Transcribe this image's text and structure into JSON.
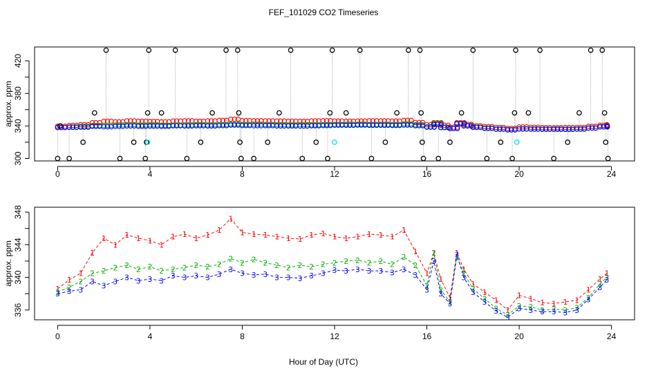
{
  "chart_data": [
    {
      "type": "scatter",
      "title": "FEF_101029  CO2 Timeseries",
      "xlabel": "",
      "ylabel": "approx. ppm",
      "xlim": [
        -1,
        25
      ],
      "ylim": [
        297,
        437
      ],
      "xticks": [
        0,
        4,
        8,
        12,
        16,
        20,
        24
      ],
      "yticks": [
        300,
        320,
        340,
        360,
        380,
        400,
        420
      ],
      "ytick_labels_shown": [
        "300",
        "340",
        "380",
        "420"
      ],
      "grid": false,
      "reference_points": {
        "color": "#000000",
        "points": [
          [
            0.0,
            300
          ],
          [
            0.1,
            340
          ],
          [
            0.5,
            300
          ],
          [
            1.1,
            320
          ],
          [
            1.6,
            356
          ],
          [
            2.1,
            433
          ],
          [
            2.7,
            300
          ],
          [
            3.3,
            320
          ],
          [
            3.8,
            300
          ],
          [
            3.85,
            320
          ],
          [
            3.9,
            356
          ],
          [
            3.95,
            433
          ],
          [
            4.5,
            356
          ],
          [
            5.1,
            433
          ],
          [
            5.6,
            300
          ],
          [
            6.2,
            320
          ],
          [
            6.7,
            356
          ],
          [
            7.3,
            433
          ],
          [
            7.8,
            433
          ],
          [
            7.85,
            356
          ],
          [
            7.9,
            320
          ],
          [
            7.95,
            300
          ],
          [
            8.5,
            300
          ],
          [
            9.1,
            320
          ],
          [
            9.6,
            356
          ],
          [
            10.1,
            433
          ],
          [
            10.6,
            300
          ],
          [
            11.2,
            320
          ],
          [
            11.7,
            300
          ],
          [
            11.8,
            356
          ],
          [
            11.9,
            433
          ],
          [
            12.5,
            356
          ],
          [
            13.1,
            433
          ],
          [
            13.6,
            300
          ],
          [
            14.2,
            320
          ],
          [
            14.7,
            356
          ],
          [
            15.2,
            433
          ],
          [
            15.7,
            433
          ],
          [
            15.75,
            356
          ],
          [
            15.8,
            320
          ],
          [
            15.85,
            300
          ],
          [
            16.5,
            300
          ],
          [
            17.0,
            320
          ],
          [
            17.5,
            356
          ],
          [
            18.0,
            433
          ],
          [
            18.6,
            300
          ],
          [
            19.2,
            320
          ],
          [
            19.7,
            300
          ],
          [
            19.8,
            356
          ],
          [
            19.85,
            433
          ],
          [
            20.4,
            356
          ],
          [
            20.9,
            433
          ],
          [
            21.5,
            300
          ],
          [
            22.1,
            320
          ],
          [
            22.6,
            356
          ],
          [
            23.1,
            433
          ],
          [
            23.6,
            433
          ],
          [
            23.7,
            356
          ],
          [
            23.75,
            320
          ],
          [
            23.85,
            300
          ]
        ]
      },
      "highlight_points": {
        "color": "#00e5ee",
        "points": [
          [
            3.9,
            320
          ],
          [
            12.0,
            320
          ],
          [
            19.9,
            320
          ]
        ]
      },
      "series": [
        {
          "label": "1",
          "color": "#ff0000"
        },
        {
          "label": "2",
          "color": "#00b000"
        },
        {
          "label": "3",
          "color": "#0000ff"
        }
      ]
    },
    {
      "type": "scatter",
      "title": "",
      "xlabel": "Hour of Day (UTC)",
      "ylabel": "approx. ppm",
      "xlim": [
        -1,
        25
      ],
      "ylim": [
        334.8,
        348.6
      ],
      "xticks": [
        0,
        4,
        8,
        12,
        16,
        20,
        24
      ],
      "yticks": [
        336,
        338,
        340,
        342,
        344,
        346,
        348
      ],
      "ytick_labels_shown": [
        "336",
        "340",
        "344",
        "348"
      ],
      "grid": false,
      "series": [
        {
          "label": "1",
          "color": "#ff0000",
          "points": [
            [
              0.0,
              338.6
            ],
            [
              0.5,
              339.7
            ],
            [
              1.0,
              340.5
            ],
            [
              1.5,
              343.0
            ],
            [
              2.0,
              344.8
            ],
            [
              2.5,
              344.0
            ],
            [
              3.0,
              345.2
            ],
            [
              3.5,
              344.8
            ],
            [
              4.0,
              344.5
            ],
            [
              4.5,
              344.0
            ],
            [
              5.0,
              345.0
            ],
            [
              5.5,
              345.3
            ],
            [
              6.0,
              344.8
            ],
            [
              6.5,
              345.2
            ],
            [
              7.0,
              345.8
            ],
            [
              7.5,
              347.2
            ],
            [
              8.0,
              345.5
            ],
            [
              8.5,
              345.3
            ],
            [
              9.0,
              345.2
            ],
            [
              9.5,
              345.0
            ],
            [
              10.0,
              344.8
            ],
            [
              10.5,
              344.7
            ],
            [
              11.0,
              345.2
            ],
            [
              11.5,
              345.4
            ],
            [
              12.0,
              345.0
            ],
            [
              12.5,
              344.8
            ],
            [
              13.0,
              345.0
            ],
            [
              13.5,
              345.3
            ],
            [
              14.0,
              345.2
            ],
            [
              14.5,
              345.0
            ],
            [
              15.0,
              345.8
            ],
            [
              15.5,
              343.2
            ],
            [
              16.0,
              340.5
            ],
            [
              16.3,
              343.0
            ],
            [
              16.6,
              339.8
            ],
            [
              17.0,
              337.5
            ],
            [
              17.3,
              343.0
            ],
            [
              17.6,
              341.0
            ],
            [
              18.0,
              339.2
            ],
            [
              18.5,
              338.2
            ],
            [
              19.0,
              337.2
            ],
            [
              19.5,
              336.0
            ],
            [
              20.0,
              337.8
            ],
            [
              20.5,
              337.4
            ],
            [
              21.0,
              336.9
            ],
            [
              21.5,
              336.8
            ],
            [
              22.0,
              337.0
            ],
            [
              22.5,
              337.2
            ],
            [
              23.0,
              338.5
            ],
            [
              23.5,
              339.8
            ],
            [
              23.8,
              340.5
            ]
          ]
        },
        {
          "label": "2",
          "color": "#00b000",
          "points": [
            [
              0.0,
              338.2
            ],
            [
              0.5,
              338.8
            ],
            [
              1.0,
              339.5
            ],
            [
              1.5,
              340.5
            ],
            [
              2.0,
              340.8
            ],
            [
              2.5,
              341.2
            ],
            [
              3.0,
              341.5
            ],
            [
              3.5,
              341.0
            ],
            [
              4.0,
              341.3
            ],
            [
              4.5,
              340.8
            ],
            [
              5.0,
              341.0
            ],
            [
              5.5,
              341.2
            ],
            [
              6.0,
              341.5
            ],
            [
              6.5,
              341.3
            ],
            [
              7.0,
              341.6
            ],
            [
              7.5,
              342.3
            ],
            [
              8.0,
              341.8
            ],
            [
              8.5,
              342.2
            ],
            [
              9.0,
              341.8
            ],
            [
              9.5,
              341.5
            ],
            [
              10.0,
              341.2
            ],
            [
              10.5,
              341.5
            ],
            [
              11.0,
              341.3
            ],
            [
              11.5,
              341.6
            ],
            [
              12.0,
              341.8
            ],
            [
              12.5,
              342.0
            ],
            [
              13.0,
              342.1
            ],
            [
              13.5,
              341.8
            ],
            [
              14.0,
              342.0
            ],
            [
              14.5,
              341.6
            ],
            [
              15.0,
              342.5
            ],
            [
              15.5,
              341.5
            ],
            [
              16.0,
              339.0
            ],
            [
              16.3,
              343.0
            ],
            [
              16.6,
              338.5
            ],
            [
              17.0,
              337.0
            ],
            [
              17.3,
              342.5
            ],
            [
              17.6,
              340.5
            ],
            [
              18.0,
              338.6
            ],
            [
              18.5,
              337.4
            ],
            [
              19.0,
              336.2
            ],
            [
              19.5,
              335.4
            ],
            [
              20.0,
              336.5
            ],
            [
              20.5,
              336.4
            ],
            [
              21.0,
              336.0
            ],
            [
              21.5,
              336.1
            ],
            [
              22.0,
              336.0
            ],
            [
              22.5,
              336.3
            ],
            [
              23.0,
              337.5
            ],
            [
              23.5,
              339.2
            ],
            [
              23.8,
              340.0
            ]
          ]
        },
        {
          "label": "3",
          "color": "#0000ff",
          "points": [
            [
              0.0,
              338.0
            ],
            [
              0.5,
              338.3
            ],
            [
              1.0,
              338.5
            ],
            [
              1.5,
              339.5
            ],
            [
              2.0,
              339.0
            ],
            [
              2.5,
              339.5
            ],
            [
              3.0,
              340.0
            ],
            [
              3.5,
              339.6
            ],
            [
              4.0,
              339.8
            ],
            [
              4.5,
              339.6
            ],
            [
              5.0,
              340.2
            ],
            [
              5.5,
              340.0
            ],
            [
              6.0,
              340.2
            ],
            [
              6.5,
              340.0
            ],
            [
              7.0,
              340.4
            ],
            [
              7.5,
              341.0
            ],
            [
              8.0,
              340.5
            ],
            [
              8.5,
              340.3
            ],
            [
              9.0,
              340.4
            ],
            [
              9.5,
              340.0
            ],
            [
              10.0,
              340.0
            ],
            [
              10.5,
              339.9
            ],
            [
              11.0,
              340.2
            ],
            [
              11.5,
              340.5
            ],
            [
              12.0,
              340.9
            ],
            [
              12.5,
              340.8
            ],
            [
              13.0,
              341.0
            ],
            [
              13.5,
              340.8
            ],
            [
              14.0,
              340.8
            ],
            [
              14.5,
              340.6
            ],
            [
              15.0,
              341.0
            ],
            [
              15.5,
              340.3
            ],
            [
              16.0,
              338.5
            ],
            [
              16.3,
              342.0
            ],
            [
              16.6,
              338.0
            ],
            [
              17.0,
              336.8
            ],
            [
              17.3,
              342.8
            ],
            [
              17.6,
              340.0
            ],
            [
              18.0,
              338.2
            ],
            [
              18.5,
              337.0
            ],
            [
              19.0,
              335.9
            ],
            [
              19.5,
              335.1
            ],
            [
              20.0,
              336.2
            ],
            [
              20.5,
              336.0
            ],
            [
              21.0,
              335.8
            ],
            [
              21.5,
              335.8
            ],
            [
              22.0,
              335.7
            ],
            [
              22.5,
              336.0
            ],
            [
              23.0,
              337.3
            ],
            [
              23.5,
              338.8
            ],
            [
              23.8,
              339.7
            ]
          ]
        }
      ]
    }
  ]
}
